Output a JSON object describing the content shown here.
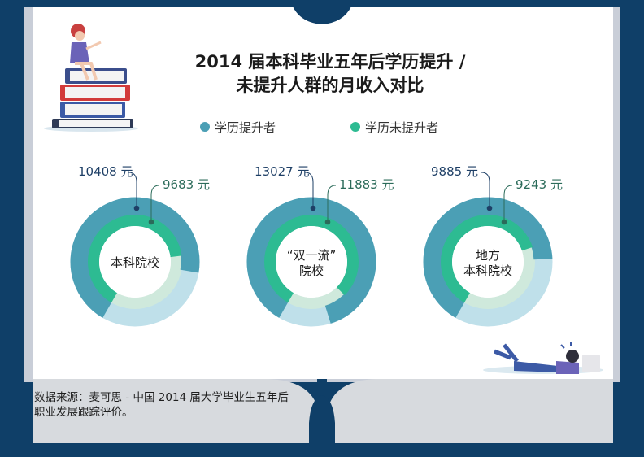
{
  "title": {
    "line1": "2014 届本科毕业五年后学历提升 /",
    "line2": "未提升人群的月收入对比"
  },
  "source": "数据来源：麦可思 - 中国 2014 届大学毕业生五年后职业发展跟踪评价。",
  "colors": {
    "upgraded": "#4b9fb5",
    "upgraded_light": "#bfe0ea",
    "not_upgraded": "#2dbb92",
    "not_upgraded_light": "#cfe9dc",
    "upgraded_text": "#1e3f66",
    "not_upgraded_text": "#2b6b5a"
  },
  "chart_data": {
    "type": "pie",
    "legend": [
      "学历提升者",
      "学历未提升者"
    ],
    "legend_position": "top",
    "unit": "元",
    "categories": [
      "本科院校",
      "“双一流”院校",
      "地方本科院校"
    ],
    "series": [
      {
        "name": "学历提升者",
        "values": [
          10408,
          13027,
          9885
        ]
      },
      {
        "name": "学历未提升者",
        "values": [
          9683,
          11883,
          9243
        ]
      }
    ],
    "items": [
      {
        "label_lines": [
          "本科院校"
        ],
        "upgraded": 10408,
        "not_upgraded": 9683,
        "upgraded_label": "10408 元",
        "not_upgraded_label": "9683 元"
      },
      {
        "label_lines": [
          "“双一流”",
          "院校"
        ],
        "upgraded": 13027,
        "not_upgraded": 11883,
        "upgraded_label": "13027 元",
        "not_upgraded_label": "11883 元"
      },
      {
        "label_lines": [
          "地方",
          "本科院校"
        ],
        "upgraded": 9885,
        "not_upgraded": 9243,
        "upgraded_label": "9885 元",
        "not_upgraded_label": "9243 元"
      }
    ],
    "scale_max": 15000
  }
}
